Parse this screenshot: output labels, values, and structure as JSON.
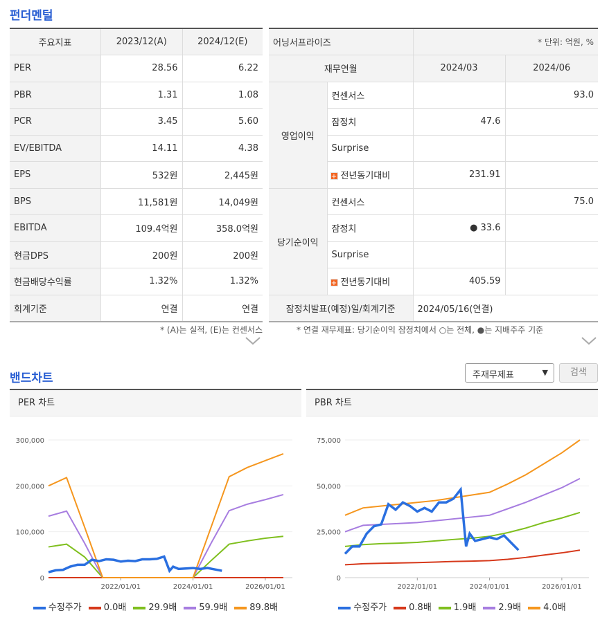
{
  "fundamentals": {
    "title": "펀더멘털",
    "headers": [
      "주요지표",
      "2023/12(A)",
      "2024/12(E)"
    ],
    "rows": [
      {
        "label": "PER",
        "a": "28.56",
        "e": "6.22"
      },
      {
        "label": "PBR",
        "a": "1.31",
        "e": "1.08"
      },
      {
        "label": "PCR",
        "a": "3.45",
        "e": "5.60"
      },
      {
        "label": "EV/EBITDA",
        "a": "14.11",
        "e": "4.38"
      },
      {
        "label": "EPS",
        "a": "532원",
        "e": "2,445원"
      },
      {
        "label": "BPS",
        "a": "11,581원",
        "e": "14,049원"
      },
      {
        "label": "EBITDA",
        "a": "109.4억원",
        "e": "358.0억원"
      },
      {
        "label": "현금DPS",
        "a": "200원",
        "e": "200원"
      },
      {
        "label": "현금배당수익률",
        "a": "1.32%",
        "e": "1.32%"
      },
      {
        "label": "회계기준",
        "a": "연결",
        "e": "연결"
      }
    ],
    "note": "* (A)는 실적, (E)는 컨센서스"
  },
  "earnings": {
    "title": "어닝서프라이즈",
    "unit": "* 단위: 억원, %",
    "col_header": "재무연월",
    "periods": [
      "2024/03",
      "2024/06"
    ],
    "groups": [
      {
        "name": "영업이익",
        "rows": [
          {
            "label": "컨센서스",
            "v1": "",
            "v2": "93.0"
          },
          {
            "label": "잠정치",
            "v1": "47.6",
            "v2": ""
          },
          {
            "label": "Surprise",
            "v1": "",
            "v2": ""
          },
          {
            "label": "전년동기대비",
            "v1": "231.91",
            "v2": ""
          }
        ]
      },
      {
        "name": "당기순이익",
        "rows": [
          {
            "label": "컨센서스",
            "v1": "",
            "v2": "75.0"
          },
          {
            "label": "잠정치",
            "v1": "● 33.6",
            "v2": ""
          },
          {
            "label": "Surprise",
            "v1": "",
            "v2": ""
          },
          {
            "label": "전년동기대비",
            "v1": "405.59",
            "v2": ""
          }
        ]
      }
    ],
    "footer_label": "잠정치발표(예정)일/회계기준",
    "footer_value": "2024/05/16(연결)",
    "plus_icon": "+",
    "note": "* 연결 재무제표: 당기순이익 잠정치에서 ○는 전체, ●는 지배주주 기준"
  },
  "band": {
    "title": "밴드차트",
    "select_value": "주재무제표",
    "search_label": "검색"
  },
  "chart_data": [
    {
      "type": "line",
      "title": "PER 차트",
      "ylim": [
        0,
        300000
      ],
      "yticks": [
        "300,000",
        "200,000",
        "100,000",
        "0"
      ],
      "xticks": [
        "2022/01/01",
        "2024/01/01",
        "2026/01/01"
      ],
      "x": [
        2020.0,
        2020.5,
        2021.0,
        2021.5,
        2022.0,
        2022.5,
        2023.0,
        2023.5,
        2024.0,
        2024.5,
        2025.0,
        2025.5,
        2026.0,
        2026.5
      ],
      "series": [
        {
          "name": "0.0배",
          "color": "#d6381a",
          "values": [
            0,
            0,
            0,
            0,
            0,
            0,
            0,
            0,
            0,
            0,
            0,
            0,
            0,
            0
          ]
        },
        {
          "name": "29.9배",
          "color": "#7fbf1e",
          "values": [
            67000,
            73000,
            45000,
            0,
            0,
            0,
            0,
            0,
            0,
            37000,
            73000,
            80000,
            86000,
            90000
          ]
        },
        {
          "name": "59.9배",
          "color": "#a77de0",
          "values": [
            134000,
            145000,
            75000,
            0,
            0,
            0,
            0,
            0,
            0,
            75000,
            146000,
            160000,
            170000,
            181000
          ]
        },
        {
          "name": "89.8배",
          "color": "#f5961e",
          "values": [
            200000,
            218000,
            110000,
            0,
            0,
            0,
            0,
            0,
            0,
            110000,
            220000,
            240000,
            255000,
            270000
          ]
        }
      ],
      "price": {
        "name": "수정주가",
        "color": "#2a6fe0",
        "x": [
          2020.0,
          2020.2,
          2020.4,
          2020.6,
          2020.8,
          2021.0,
          2021.2,
          2021.4,
          2021.6,
          2021.8,
          2022.0,
          2022.2,
          2022.4,
          2022.6,
          2022.8,
          2023.0,
          2023.2,
          2023.35,
          2023.45,
          2023.6,
          2023.8,
          2024.0,
          2024.2,
          2024.4,
          2024.6,
          2024.8
        ],
        "values": [
          12000,
          16000,
          17000,
          24000,
          28000,
          28000,
          39000,
          36000,
          40000,
          39000,
          35000,
          37000,
          36000,
          40000,
          40000,
          41000,
          46000,
          15000,
          24000,
          19000,
          20000,
          21000,
          19000,
          21000,
          18000,
          15000
        ]
      }
    },
    {
      "type": "line",
      "title": "PBR 차트",
      "ylim": [
        0,
        75000
      ],
      "yticks": [
        "75,000",
        "50,000",
        "25,000",
        "0"
      ],
      "xticks": [
        "2022/01/01",
        "2024/01/01",
        "2026/01/01"
      ],
      "x": [
        2020.0,
        2020.5,
        2021.0,
        2021.5,
        2022.0,
        2022.5,
        2023.0,
        2023.5,
        2024.0,
        2024.5,
        2025.0,
        2025.5,
        2026.0,
        2026.5
      ],
      "series": [
        {
          "name": "0.8배",
          "color": "#d6381a",
          "values": [
            7000,
            7600,
            7800,
            8000,
            8200,
            8500,
            8800,
            9000,
            9300,
            10000,
            11000,
            12300,
            13500,
            15000
          ]
        },
        {
          "name": "1.9배",
          "color": "#7fbf1e",
          "values": [
            17000,
            18000,
            18500,
            18800,
            19200,
            20000,
            20800,
            21500,
            22500,
            24500,
            27000,
            30000,
            32500,
            35500
          ]
        },
        {
          "name": "2.9배",
          "color": "#a77de0",
          "values": [
            25000,
            28500,
            29000,
            29500,
            30000,
            31000,
            32000,
            33000,
            34000,
            37500,
            41000,
            45000,
            49000,
            54000
          ]
        },
        {
          "name": "4.0배",
          "color": "#f5961e",
          "values": [
            34000,
            38000,
            39000,
            40000,
            41000,
            42000,
            43500,
            45000,
            46500,
            51000,
            56000,
            62000,
            68000,
            75000
          ]
        }
      ],
      "price": {
        "name": "수정주가",
        "color": "#2a6fe0",
        "x": [
          2020.0,
          2020.2,
          2020.4,
          2020.6,
          2020.8,
          2021.0,
          2021.2,
          2021.4,
          2021.6,
          2021.8,
          2022.0,
          2022.2,
          2022.4,
          2022.6,
          2022.8,
          2023.0,
          2023.2,
          2023.35,
          2023.45,
          2023.6,
          2023.8,
          2024.0,
          2024.2,
          2024.4,
          2024.6,
          2024.8
        ],
        "values": [
          13000,
          17000,
          17000,
          24000,
          28000,
          29000,
          40000,
          37000,
          41000,
          39000,
          36000,
          38000,
          36000,
          41000,
          41000,
          43000,
          48000,
          17000,
          24000,
          20000,
          21000,
          22000,
          21000,
          23000,
          19000,
          15000
        ]
      }
    }
  ]
}
